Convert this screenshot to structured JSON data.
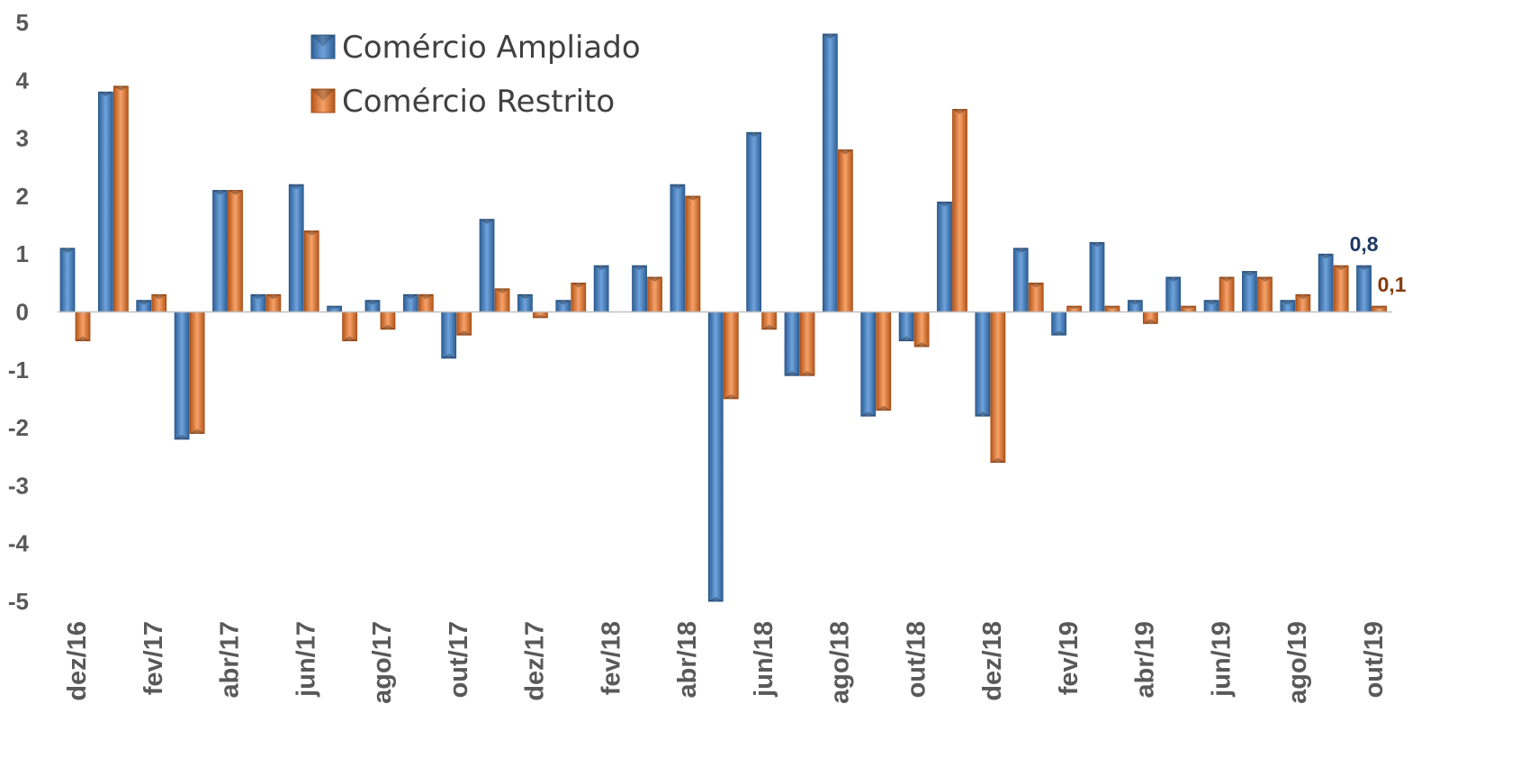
{
  "chart_data": {
    "type": "bar",
    "title": "",
    "xlabel": "",
    "ylabel": "",
    "ylim": [
      -5,
      5
    ],
    "yticks": [
      5,
      4,
      3,
      2,
      1,
      0,
      -1,
      -2,
      -3,
      -4,
      -5
    ],
    "grid": false,
    "legend_position": "top-left",
    "categories": [
      "dez/16",
      "jan/17",
      "fev/17",
      "mar/17",
      "abr/17",
      "mai/17",
      "jun/17",
      "jul/17",
      "ago/17",
      "set/17",
      "out/17",
      "nov/17",
      "dez/17",
      "jan/18",
      "fev/18",
      "mar/18",
      "abr/18",
      "mai/18",
      "jun/18",
      "jul/18",
      "ago/18",
      "set/18",
      "out/18",
      "nov/18",
      "dez/18",
      "jan/19",
      "fev/19",
      "mar/19",
      "abr/19",
      "mai/19",
      "jun/19",
      "jul/19",
      "ago/19",
      "set/19",
      "out/19"
    ],
    "tick_labels": [
      "dez/16",
      "fev/17",
      "abr/17",
      "jun/17",
      "ago/17",
      "out/17",
      "dez/17",
      "fev/18",
      "abr/18",
      "jun/18",
      "ago/18",
      "out/18",
      "dez/18",
      "fev/19",
      "abr/19",
      "jun/19",
      "ago/19",
      "out/19"
    ],
    "series": [
      {
        "name": "Comércio Ampliado",
        "color": "#4a86c7",
        "values": [
          1.1,
          3.8,
          0.2,
          -2.2,
          2.1,
          0.3,
          2.2,
          0.1,
          0.2,
          0.3,
          -0.8,
          1.6,
          0.3,
          0.2,
          0.8,
          0.8,
          2.2,
          -5.0,
          3.1,
          -1.1,
          4.8,
          -1.8,
          -0.5,
          1.9,
          -1.8,
          1.1,
          -0.4,
          1.2,
          0.2,
          0.6,
          0.2,
          0.7,
          0.2,
          1.0,
          0.8
        ]
      },
      {
        "name": "Comércio Restrito",
        "color": "#ed7d31",
        "values": [
          -0.5,
          3.9,
          0.3,
          -2.1,
          2.1,
          0.3,
          1.4,
          -0.5,
          -0.3,
          0.3,
          -0.4,
          0.4,
          -0.1,
          0.5,
          0.0,
          0.6,
          2.0,
          -1.5,
          -0.3,
          -1.1,
          2.8,
          -1.7,
          -0.6,
          3.5,
          -2.6,
          0.5,
          0.1,
          0.1,
          -0.2,
          0.1,
          0.6,
          0.6,
          0.3,
          0.8,
          0.1
        ]
      }
    ],
    "data_labels": [
      {
        "series": "Comércio Ampliado",
        "category": "out/19",
        "text": "0,8",
        "color": "#1f3864"
      },
      {
        "series": "Comércio Restrito",
        "category": "out/19",
        "text": "0,1",
        "color": "#843c0c"
      }
    ]
  }
}
